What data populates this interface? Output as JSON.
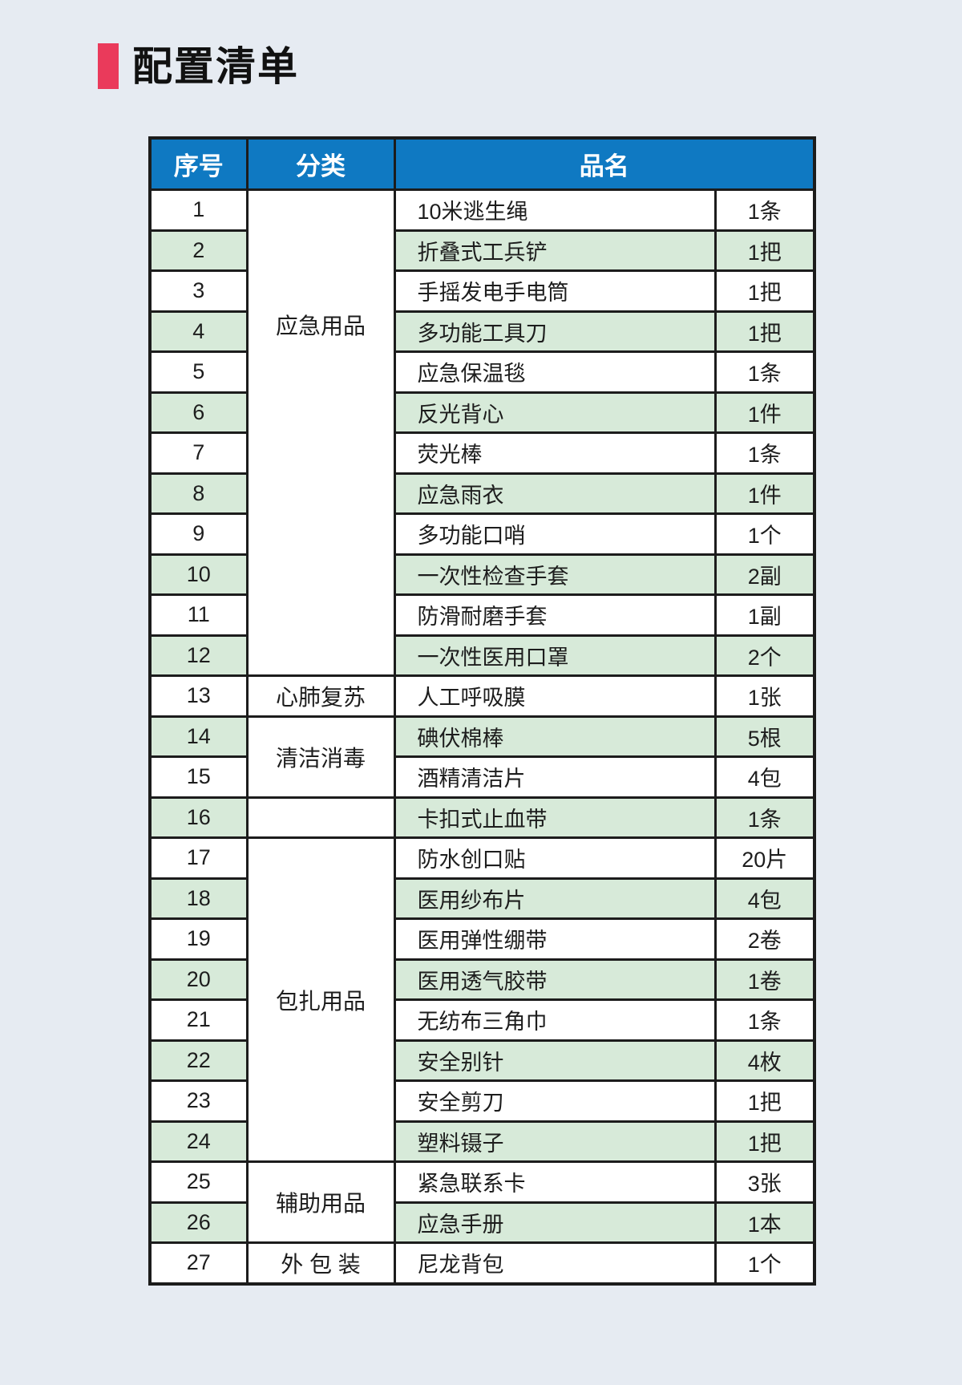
{
  "colors": {
    "page-bg": "#e6ebf2",
    "marker": "#ea3a5b",
    "header-bg": "#0f79c2",
    "header-text": "#ffffff",
    "stripe-green": "#d7ead9",
    "border": "#1c1c1c",
    "text": "#1d1d1d"
  },
  "title": {
    "text": "配置清单"
  },
  "table": {
    "header": {
      "col_no": "序号",
      "col_category": "分类",
      "col_name": "品名"
    },
    "rows": [
      {
        "no": "1",
        "category": {
          "label": "应急用品",
          "span": 12,
          "offset_up": true
        },
        "name": "10米逃生绳",
        "qty": "1条"
      },
      {
        "no": "2",
        "name": "折叠式工兵铲",
        "qty": "1把"
      },
      {
        "no": "3",
        "name": "手摇发电手电筒",
        "qty": "1把"
      },
      {
        "no": "4",
        "name": "多功能工具刀",
        "qty": "1把"
      },
      {
        "no": "5",
        "name": "应急保温毯",
        "qty": "1条"
      },
      {
        "no": "6",
        "name": "反光背心",
        "qty": "1件"
      },
      {
        "no": "7",
        "name": "荧光棒",
        "qty": "1条"
      },
      {
        "no": "8",
        "name": "应急雨衣",
        "qty": "1件"
      },
      {
        "no": "9",
        "name": "多功能口哨",
        "qty": "1个"
      },
      {
        "no": "10",
        "name": "一次性检查手套",
        "qty": "2副"
      },
      {
        "no": "11",
        "name": "防滑耐磨手套",
        "qty": "1副"
      },
      {
        "no": "12",
        "name": "一次性医用口罩",
        "qty": "2个"
      },
      {
        "no": "13",
        "category": {
          "label": "心肺复苏",
          "span": 1
        },
        "name": "人工呼吸膜",
        "qty": "1张"
      },
      {
        "no": "14",
        "category": {
          "label": "清洁消毒",
          "span": 2
        },
        "name": "碘伏棉棒",
        "qty": "5根"
      },
      {
        "no": "15",
        "name": "酒精清洁片",
        "qty": "4包"
      },
      {
        "no": "16",
        "category": {
          "label": "",
          "span": 1
        },
        "name": "卡扣式止血带",
        "qty": "1条"
      },
      {
        "no": "17",
        "category": {
          "label": "包扎用品",
          "span": 8
        },
        "name": "防水创口贴",
        "qty": "20片"
      },
      {
        "no": "18",
        "name": "医用纱布片",
        "qty": "4包"
      },
      {
        "no": "19",
        "name": "医用弹性绷带",
        "qty": "2卷"
      },
      {
        "no": "20",
        "name": "医用透气胶带",
        "qty": "1卷"
      },
      {
        "no": "21",
        "name": "无纺布三角巾",
        "qty": "1条"
      },
      {
        "no": "22",
        "name": "安全别针",
        "qty": "4枚"
      },
      {
        "no": "23",
        "name": "安全剪刀",
        "qty": "1把"
      },
      {
        "no": "24",
        "name": "塑料镊子",
        "qty": "1把"
      },
      {
        "no": "25",
        "category": {
          "label": "辅助用品",
          "span": 2
        },
        "name": "紧急联系卡",
        "qty": "3张"
      },
      {
        "no": "26",
        "name": "应急手册",
        "qty": "1本"
      },
      {
        "no": "27",
        "category": {
          "label": "外 包 装",
          "span": 1
        },
        "name": "尼龙背包",
        "qty": "1个"
      }
    ]
  }
}
